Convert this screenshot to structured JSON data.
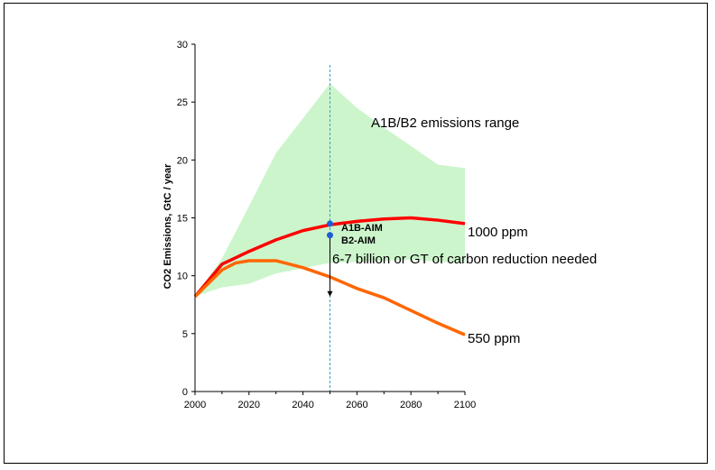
{
  "chart_data": {
    "type": "line",
    "ylabel": "CO2 Emissions, GtC / year",
    "xlabel": "",
    "xlim": [
      2000,
      2100
    ],
    "ylim": [
      0,
      30
    ],
    "x_ticks": [
      "2000",
      "2020",
      "2040",
      "2060",
      "2080",
      "2100"
    ],
    "y_ticks": [
      "0",
      "5",
      "10",
      "15",
      "20",
      "25",
      "30"
    ],
    "range_band": {
      "name": "A1B/B2 emissions range",
      "color": "#ccf5cc",
      "x": [
        2000,
        2010,
        2020,
        2030,
        2050,
        2060,
        2070,
        2080,
        2090,
        2100
      ],
      "upper": [
        8.2,
        11.5,
        16.0,
        20.6,
        26.6,
        24.5,
        22.8,
        21.2,
        19.6,
        19.3
      ],
      "lower": [
        8.2,
        9.0,
        9.3,
        10.2,
        11.1,
        11.2,
        11.3,
        11.4,
        11.2,
        11.1
      ]
    },
    "series": [
      {
        "name": "1000 ppm",
        "color": "#ff0000",
        "x": [
          2000,
          2010,
          2020,
          2030,
          2040,
          2050,
          2060,
          2070,
          2080,
          2090,
          2100
        ],
        "values": [
          8.2,
          11.0,
          12.1,
          13.1,
          13.9,
          14.4,
          14.7,
          14.9,
          15.0,
          14.8,
          14.5
        ]
      },
      {
        "name": "550 ppm",
        "color": "#ff6600",
        "x": [
          2000,
          2010,
          2015,
          2020,
          2025,
          2030,
          2040,
          2050,
          2060,
          2070,
          2080,
          2090,
          2100
        ],
        "values": [
          8.2,
          10.5,
          11.1,
          11.3,
          11.3,
          11.3,
          10.7,
          9.9,
          8.9,
          8.1,
          7.0,
          5.9,
          4.9
        ]
      }
    ],
    "points": [
      {
        "label": "A1B-AIM",
        "x": 2050,
        "y": 14.5,
        "color": "#1f5fd6"
      },
      {
        "label": "B2-AIM",
        "x": 2050,
        "y": 13.5,
        "color": "#1f5fd6"
      }
    ],
    "marker_line": {
      "x": 2050,
      "color": "#3a9fc0"
    },
    "arrow": {
      "x": 2050,
      "from": 13.5,
      "to": 8.2
    },
    "annotations": {
      "range_label": "A1B/B2 emissions range",
      "reduction_label": "6-7 billion or GT of carbon reduction needed",
      "series_high_label": "1000 ppm",
      "series_low_label": "550 ppm"
    }
  }
}
